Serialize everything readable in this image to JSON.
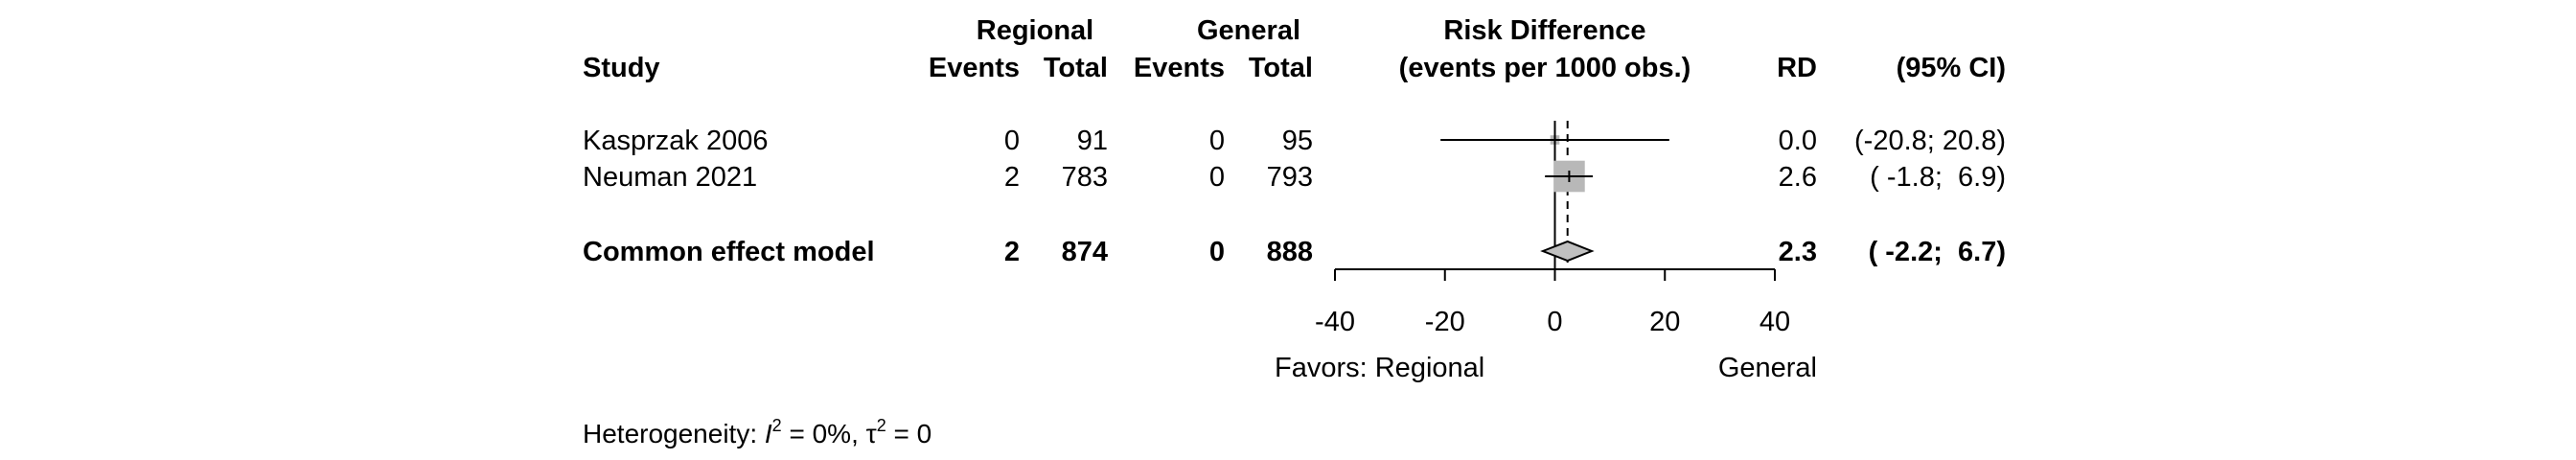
{
  "chart_data": {
    "type": "forest",
    "headers": {
      "study": "Study",
      "group1": "Regional",
      "group2": "General",
      "events": "Events",
      "total": "Total",
      "effect_title": "Risk Difference",
      "effect_subtitle": "(events per 1000 obs.)",
      "rd": "RD",
      "ci": "(95% CI)"
    },
    "studies": [
      {
        "name": "Kasprzak 2006",
        "e1": "0",
        "n1": "91",
        "e2": "0",
        "n2": "95",
        "rd": 0.0,
        "lower": -20.8,
        "upper": 20.8,
        "weight": 0.08,
        "rd_text": "0.0",
        "ci_text": "(-20.8; 20.8)"
      },
      {
        "name": "Neuman 2021",
        "e1": "2",
        "n1": "783",
        "e2": "0",
        "n2": "793",
        "rd": 2.6,
        "lower": -1.8,
        "upper": 6.9,
        "weight": 0.92,
        "rd_text": "2.6",
        "ci_text": "( -1.8;  6.9)"
      }
    ],
    "pooled": {
      "name": "Common effect model",
      "e1": "2",
      "n1": "874",
      "e2": "0",
      "n2": "888",
      "rd": 2.3,
      "lower": -2.2,
      "upper": 6.7,
      "rd_text": "2.3",
      "ci_text": "( -2.2;  6.7)"
    },
    "xaxis": {
      "ticks": [
        -40,
        -20,
        0,
        20,
        40
      ],
      "xlim": [
        -40,
        40
      ]
    },
    "favors_left": "Favors: Regional",
    "favors_right": "General"
  },
  "heterogeneity": {
    "label": "Heterogeneity: ",
    "i2_symbol": "I",
    "i2_sup": "2",
    "i2_value": " = 0%, ",
    "tau_symbol": "τ",
    "tau_sup": "2",
    "tau_value": " = 0"
  }
}
